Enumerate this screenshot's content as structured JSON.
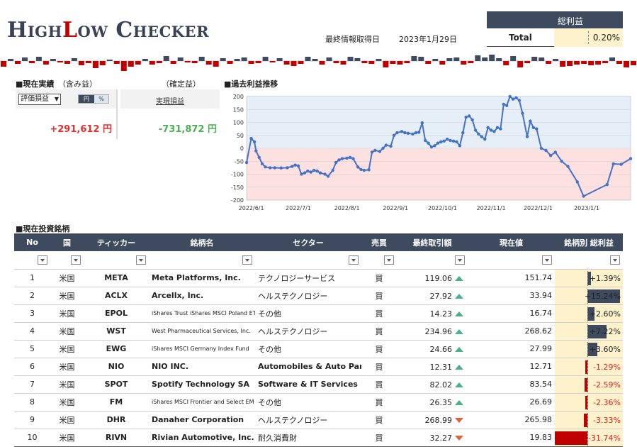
{
  "header": {
    "logo_text": "HighLow Checker",
    "logo_parts": [
      "High",
      "L",
      "ow Checker"
    ],
    "updated_label": "最終情報取得日",
    "updated_date": "2023年1月29日"
  },
  "total_profit": {
    "header": "総利益",
    "label": "Total",
    "value": "0.20%"
  },
  "summary": {
    "section_title": "■現在実績",
    "left_subtitle": "（含み益）",
    "right_subtitle": "（確定益）",
    "select_value": "評価損益",
    "toggle_yen": "円",
    "toggle_pct": "%",
    "realized_link": "実現損益",
    "unrealized_value": "+291,612 円",
    "realized_value": "-731,872 円"
  },
  "history_chart": {
    "section_title": "■過去利益推移"
  },
  "chart_data": {
    "type": "line",
    "title": "",
    "xlabel": "",
    "ylabel": "",
    "x_tick_labels": [
      "2022/6/1",
      "2022/7/1",
      "2022/8/1",
      "2022/9/1",
      "2022/10/1",
      "2022/11/1",
      "2022/12/1",
      "2023/1/1"
    ],
    "y_ticks": [
      -200,
      -150,
      -100,
      -50,
      0,
      50,
      100,
      150,
      200
    ],
    "ylim": [
      -200,
      200
    ],
    "x_range": [
      "2022-05-29",
      "2023-01-29"
    ],
    "positive_band_color": "#e6eef8",
    "negative_band_color": "#fde0e0",
    "line_color": "#4472c4",
    "points": [
      [
        "2022-05-29",
        -55
      ],
      [
        "2022-06-01",
        38
      ],
      [
        "2022-06-03",
        25
      ],
      [
        "2022-06-04",
        -10
      ],
      [
        "2022-06-06",
        -35
      ],
      [
        "2022-06-08",
        -60
      ],
      [
        "2022-06-10",
        -72
      ],
      [
        "2022-06-13",
        -75
      ],
      [
        "2022-06-16",
        -75
      ],
      [
        "2022-06-20",
        -76
      ],
      [
        "2022-06-24",
        -75
      ],
      [
        "2022-06-27",
        -70
      ],
      [
        "2022-06-29",
        -65
      ],
      [
        "2022-07-01",
        -68
      ],
      [
        "2022-07-03",
        -100
      ],
      [
        "2022-07-05",
        -95
      ],
      [
        "2022-07-07",
        -88
      ],
      [
        "2022-07-09",
        -92
      ],
      [
        "2022-07-11",
        -85
      ],
      [
        "2022-07-13",
        -88
      ],
      [
        "2022-07-15",
        -95
      ],
      [
        "2022-07-18",
        -100
      ],
      [
        "2022-07-20",
        -108
      ],
      [
        "2022-07-23",
        -85
      ],
      [
        "2022-07-25",
        -55
      ],
      [
        "2022-07-27",
        -45
      ],
      [
        "2022-07-29",
        -40
      ],
      [
        "2022-08-01",
        -38
      ],
      [
        "2022-08-03",
        -35
      ],
      [
        "2022-08-05",
        -40
      ],
      [
        "2022-08-08",
        -72
      ],
      [
        "2022-08-10",
        -82
      ],
      [
        "2022-08-12",
        -85
      ],
      [
        "2022-08-15",
        -83
      ],
      [
        "2022-08-17",
        -15
      ],
      [
        "2022-08-19",
        -8
      ],
      [
        "2022-08-22",
        -12
      ],
      [
        "2022-08-24",
        0
      ],
      [
        "2022-08-26",
        12
      ],
      [
        "2022-08-29",
        8
      ],
      [
        "2022-08-31",
        50
      ],
      [
        "2022-09-02",
        60
      ],
      [
        "2022-09-05",
        65
      ],
      [
        "2022-09-07",
        60
      ],
      [
        "2022-09-09",
        58
      ],
      [
        "2022-09-12",
        55
      ],
      [
        "2022-09-14",
        60
      ],
      [
        "2022-09-16",
        62
      ],
      [
        "2022-09-18",
        98
      ],
      [
        "2022-09-20",
        30
      ],
      [
        "2022-09-22",
        20
      ],
      [
        "2022-09-24",
        5
      ],
      [
        "2022-09-26",
        10
      ],
      [
        "2022-09-28",
        20
      ],
      [
        "2022-09-30",
        25
      ],
      [
        "2022-10-02",
        28
      ],
      [
        "2022-10-04",
        35
      ],
      [
        "2022-10-06",
        30
      ],
      [
        "2022-10-08",
        28
      ],
      [
        "2022-10-10",
        25
      ],
      [
        "2022-10-12",
        10
      ],
      [
        "2022-10-14",
        60
      ],
      [
        "2022-10-16",
        120
      ],
      [
        "2022-10-18",
        125
      ],
      [
        "2022-10-20",
        110
      ],
      [
        "2022-10-22",
        70
      ],
      [
        "2022-10-24",
        55
      ],
      [
        "2022-10-26",
        45
      ],
      [
        "2022-10-28",
        35
      ],
      [
        "2022-10-30",
        80
      ],
      [
        "2022-11-01",
        70
      ],
      [
        "2022-11-03",
        65
      ],
      [
        "2022-11-05",
        80
      ],
      [
        "2022-11-07",
        75
      ],
      [
        "2022-11-09",
        170
      ],
      [
        "2022-11-11",
        165
      ],
      [
        "2022-11-13",
        200
      ],
      [
        "2022-11-15",
        190
      ],
      [
        "2022-11-17",
        195
      ],
      [
        "2022-11-19",
        185
      ],
      [
        "2022-11-21",
        135
      ],
      [
        "2022-11-24",
        45
      ],
      [
        "2022-11-26",
        105
      ],
      [
        "2022-11-28",
        80
      ],
      [
        "2022-11-30",
        75
      ],
      [
        "2022-12-03",
        0
      ],
      [
        "2022-12-06",
        -8
      ],
      [
        "2022-12-09",
        -28
      ],
      [
        "2022-12-12",
        -15
      ],
      [
        "2022-12-16",
        -50
      ],
      [
        "2022-12-20",
        -70
      ],
      [
        "2022-12-26",
        -130
      ],
      [
        "2022-12-30",
        -185
      ],
      [
        "2023-01-14",
        -140
      ],
      [
        "2023-01-18",
        -60
      ],
      [
        "2023-01-23",
        -62
      ],
      [
        "2023-01-29",
        -40
      ]
    ]
  },
  "holdings": {
    "section_title": "■現在投資銘柄",
    "columns": [
      "No",
      "国",
      "ティッカー",
      "銘柄名",
      "セクター",
      "売買",
      "最終取引額",
      "現在値",
      "銘柄別 総利益"
    ],
    "rows": [
      {
        "no": "1",
        "country": "米国",
        "ticker": "META",
        "name": "Meta Platforms, Inc.",
        "sector": "テクノロジーサービス",
        "side": "買",
        "last_price": "119.06",
        "trend": "up",
        "current": "151.74",
        "pl": "+1.39%",
        "pl_value": 1.39
      },
      {
        "no": "2",
        "country": "米国",
        "ticker": "ACLX",
        "name": "Arcellx, Inc.",
        "sector": "ヘルステクノロジー",
        "side": "買",
        "last_price": "27.92",
        "trend": "up",
        "current": "33.94",
        "pl": "+15.24%",
        "pl_value": 15.24
      },
      {
        "no": "3",
        "country": "米国",
        "ticker": "EPOL",
        "name": "iShares Trust iShares MSCI Poland ETF",
        "sector": "その他",
        "side": "買",
        "last_price": "14.23",
        "trend": "up",
        "current": "16.74",
        "pl": "+2.60%",
        "pl_value": 2.6
      },
      {
        "no": "4",
        "country": "米国",
        "ticker": "WST",
        "name": "West Pharmaceutical Services, Inc.",
        "sector": "ヘルステクノロジー",
        "side": "買",
        "last_price": "234.96",
        "trend": "up",
        "current": "268.62",
        "pl": "+7.22%",
        "pl_value": 7.22
      },
      {
        "no": "5",
        "country": "米国",
        "ticker": "EWG",
        "name": "iShares MSCI Germany Index Fund",
        "sector": "その他",
        "side": "買",
        "last_price": "24.66",
        "trend": "up",
        "current": "27.99",
        "pl": "+3.60%",
        "pl_value": 3.6
      },
      {
        "no": "6",
        "country": "米国",
        "ticker": "NIO",
        "name": "NIO INC.",
        "sector": "Automobiles & Auto Parts",
        "side": "買",
        "last_price": "12.31",
        "trend": "up",
        "current": "12.71",
        "pl": "-1.29%",
        "pl_value": -1.29
      },
      {
        "no": "7",
        "country": "米国",
        "ticker": "SPOT",
        "name": "Spotify Technology SA",
        "sector": "Software & IT Services",
        "side": "買",
        "last_price": "82.02",
        "trend": "up",
        "current": "83.54",
        "pl": "-2.59%",
        "pl_value": -2.59
      },
      {
        "no": "8",
        "country": "米国",
        "ticker": "FM",
        "name": "iShares MSCI Frontier and Select EM ETF",
        "sector": "その他",
        "side": "買",
        "last_price": "26.35",
        "trend": "up",
        "current": "26.69",
        "pl": "-2.36%",
        "pl_value": -2.36
      },
      {
        "no": "9",
        "country": "米国",
        "ticker": "DHR",
        "name": "Danaher Corporation",
        "sector": "ヘルステクノロジー",
        "side": "買",
        "last_price": "268.99",
        "trend": "down",
        "current": "265.98",
        "pl": "-3.33%",
        "pl_value": -3.33
      },
      {
        "no": "10",
        "country": "米国",
        "ticker": "RIVN",
        "name": "Rivian Automotive, Inc.",
        "sector": "耐久消費財",
        "side": "買",
        "last_price": "32.27",
        "trend": "down",
        "current": "19.83",
        "pl": "-31.74%",
        "pl_value": -31.74
      }
    ]
  },
  "sparkline": {
    "values": [
      -8,
      3,
      -4,
      5,
      -3,
      6,
      -5,
      3,
      -2,
      -4,
      4,
      -6,
      -3,
      -10,
      -6,
      2,
      -4,
      -16,
      -8,
      -5,
      3,
      -5,
      -3,
      7,
      -4,
      5,
      -2,
      -3,
      6,
      -5,
      -8,
      4,
      -4,
      3,
      5,
      -4,
      -3,
      6,
      -2,
      4,
      -5,
      -7,
      -4,
      6,
      3,
      -5,
      5,
      -3,
      -5,
      6,
      4,
      -3,
      -4,
      3,
      -9,
      -4,
      -5,
      -3,
      7,
      6,
      -4,
      3,
      -5,
      4,
      5,
      -5,
      -3,
      8,
      5,
      9,
      4,
      -6,
      7,
      -9,
      -3,
      6,
      5,
      -4,
      3,
      -8,
      -7,
      -5,
      -4,
      -6,
      -5,
      -3,
      5,
      -4,
      -9,
      -6
    ],
    "pos_color": "#3e4a5e",
    "neg_color": "#c00000"
  }
}
